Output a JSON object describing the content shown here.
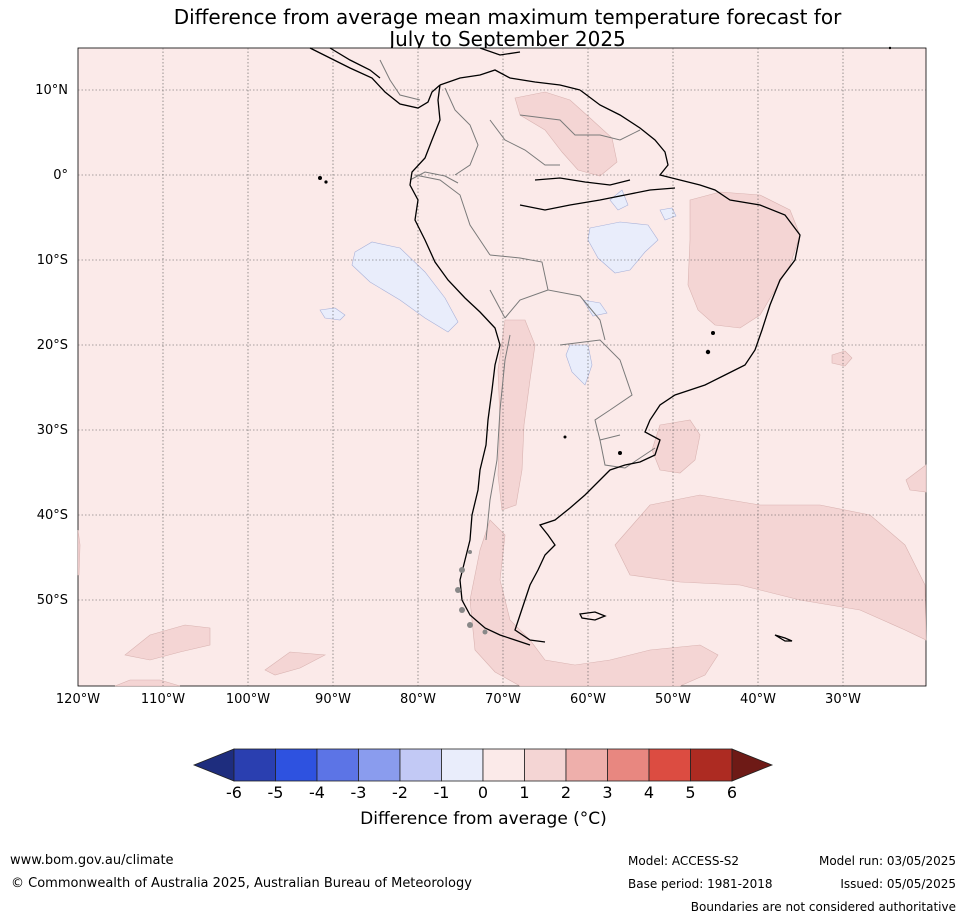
{
  "title": {
    "line1": "Difference from average mean maximum temperature forecast for",
    "line2": "July to September 2025"
  },
  "map": {
    "lat_labels": [
      "10°N",
      "0°",
      "10°S",
      "20°S",
      "30°S",
      "40°S",
      "50°S"
    ],
    "lon_labels": [
      "120°W",
      "110°W",
      "100°W",
      "90°W",
      "80°W",
      "70°W",
      "60°W",
      "50°W",
      "40°W",
      "30°W"
    ],
    "background_class_color": "#fbeae9",
    "warm_color": "#f4d5d4",
    "cool_color": "#e9edfb"
  },
  "colorbar": {
    "ticks": [
      "-6",
      "-5",
      "-4",
      "-3",
      "-2",
      "-1",
      "0",
      "1",
      "2",
      "3",
      "4",
      "5",
      "6"
    ],
    "colors": [
      "#1e2d7e",
      "#2a3fb0",
      "#2e52e0",
      "#5c74e6",
      "#8a9cee",
      "#c2c9f5",
      "#e9edfb",
      "#fbeae9",
      "#f4d5d4",
      "#eeafab",
      "#e88780",
      "#dc4c41",
      "#ad2b22",
      "#6e1a16"
    ],
    "label": "Difference from average (°C)"
  },
  "footer": {
    "website": "www.bom.gov.au/climate",
    "copyright": "© Commonwealth of Australia 2025, Australian Bureau of Meteorology",
    "model": "Model: ACCESS-S2",
    "base_period": "Base period: 1981-2018",
    "model_run": "Model run: 03/05/2025",
    "issued": "Issued: 05/05/2025",
    "boundaries_note": "Boundaries are not considered authoritative"
  }
}
